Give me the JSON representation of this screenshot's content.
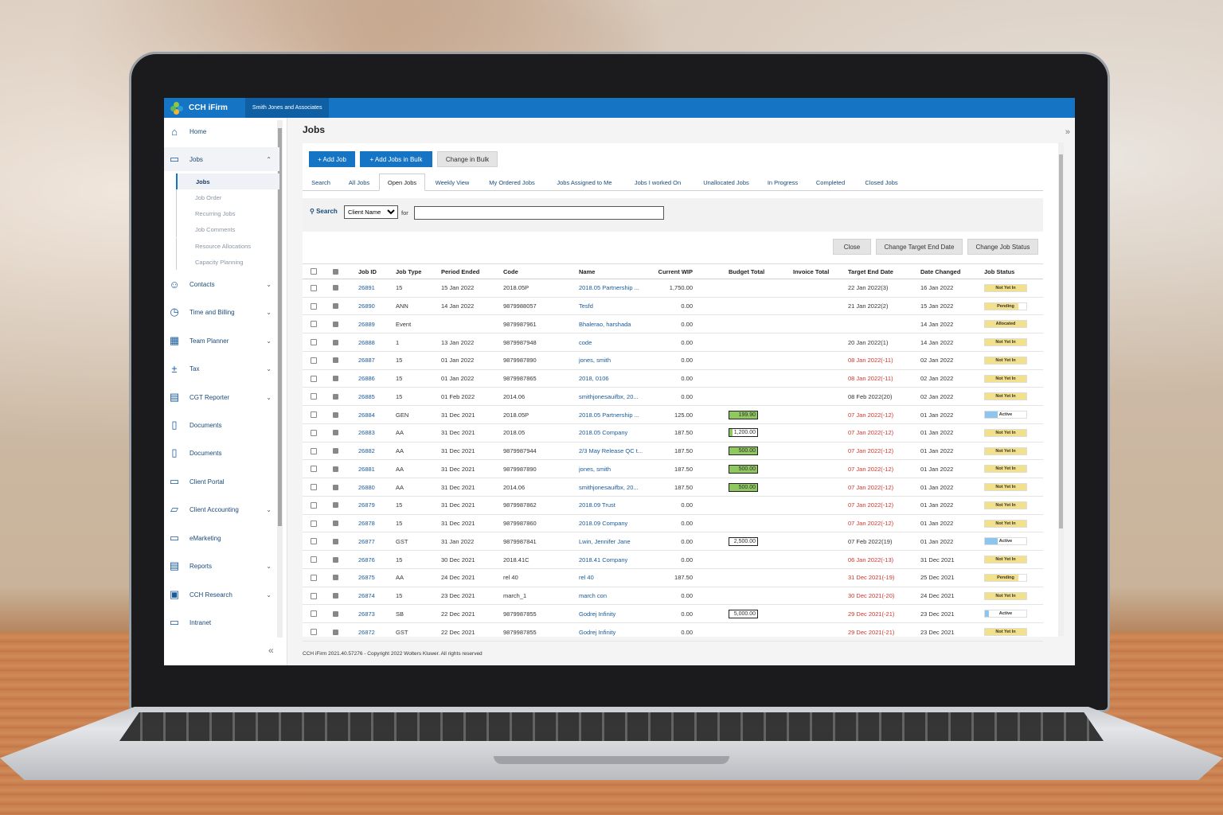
{
  "app": {
    "brand": "CCH iFirm",
    "firm": "Smith Jones and Associates"
  },
  "sidebar": {
    "items": [
      {
        "key": "home",
        "label": "Home",
        "icon": "home-icon",
        "glyph": "⌂",
        "chevron": ""
      },
      {
        "key": "jobs",
        "label": "Jobs",
        "icon": "folder-icon",
        "glyph": "▭",
        "chevron": "⌃"
      },
      {
        "key": "contacts",
        "label": "Contacts",
        "icon": "person-icon",
        "glyph": "☺",
        "chevron": "⌄"
      },
      {
        "key": "time",
        "label": "Time and Billing",
        "icon": "clock-icon",
        "glyph": "◷",
        "chevron": "⌄"
      },
      {
        "key": "planner",
        "label": "Team Planner",
        "icon": "calendar-icon",
        "glyph": "▦",
        "chevron": "⌄"
      },
      {
        "key": "tax",
        "label": "Tax",
        "icon": "calculator-icon",
        "glyph": "±",
        "chevron": "⌄"
      },
      {
        "key": "cgt",
        "label": "CGT Reporter",
        "icon": "grid-icon",
        "glyph": "▤",
        "chevron": "⌄"
      },
      {
        "key": "docs1",
        "label": "Documents",
        "icon": "document-icon",
        "glyph": "▯",
        "chevron": ""
      },
      {
        "key": "docs2",
        "label": "Documents",
        "icon": "document-icon",
        "glyph": "▯",
        "chevron": ""
      },
      {
        "key": "portal",
        "label": "Client Portal",
        "icon": "monitor-icon",
        "glyph": "▭",
        "chevron": ""
      },
      {
        "key": "accounting",
        "label": "Client Accounting",
        "icon": "inbox-icon",
        "glyph": "▱",
        "chevron": "⌄"
      },
      {
        "key": "emarketing",
        "label": "eMarketing",
        "icon": "card-icon",
        "glyph": "▭",
        "chevron": ""
      },
      {
        "key": "reports",
        "label": "Reports",
        "icon": "report-icon",
        "glyph": "▤",
        "chevron": "⌄"
      },
      {
        "key": "research",
        "label": "CCH Research",
        "icon": "briefcase-icon",
        "glyph": "▣",
        "chevron": "⌄"
      },
      {
        "key": "intranet",
        "label": "Intranet",
        "icon": "laptop-icon",
        "glyph": "▭",
        "chevron": ""
      }
    ],
    "jobs_sub": [
      "Jobs",
      "Job Order",
      "Recurring Jobs",
      "Job Comments",
      "Resource Allocations",
      "Capacity Planning"
    ]
  },
  "main": {
    "title": "Jobs",
    "buttons": {
      "add_job": "+ Add Job",
      "add_bulk": "+ Add Jobs in Bulk",
      "change_bulk": "Change in Bulk"
    },
    "tabs": [
      "Search",
      "All Jobs",
      "Open Jobs",
      "Weekly View",
      "My Ordered Jobs",
      "Jobs Assigned to Me",
      "Jobs I worked On",
      "Unallocated Jobs",
      "In Progress",
      "Completed",
      "Closed Jobs"
    ],
    "search": {
      "label": "Search",
      "select_value": "Client Name",
      "for": "for",
      "value": ""
    },
    "actions": [
      "Close",
      "Change Target End Date",
      "Change Job Status"
    ],
    "columns": [
      "Job ID",
      "Job Type",
      "Period Ended",
      "Code",
      "Name",
      "Current WIP",
      "Budget Total",
      "Invoice Total",
      "Target End Date",
      "Date Changed",
      "Job Status"
    ],
    "rows": [
      {
        "id": "26891",
        "type": "15",
        "period": "15 Jan 2022",
        "code": "2018.05P",
        "name": "2018.05 Partnership ...",
        "wip": "1,750.00",
        "budget": "",
        "budget_pct": 0,
        "invoice": "",
        "target": "22 Jan 2022(3)",
        "target_late": false,
        "changed": "16 Jan 2022",
        "status": "Not Yet In",
        "status_color": "#f3e08a",
        "status_pct": 100
      },
      {
        "id": "26890",
        "type": "ANN",
        "period": "14 Jan 2022",
        "code": "9879988057",
        "name": "Tesfd",
        "wip": "0.00",
        "budget": "",
        "budget_pct": 0,
        "invoice": "",
        "target": "21 Jan 2022(2)",
        "target_late": false,
        "changed": "15 Jan 2022",
        "status": "Pending",
        "status_color": "#f3e08a",
        "status_pct": 80
      },
      {
        "id": "26889",
        "type": "Event",
        "period": "",
        "code": "9879987961",
        "name": "Bhalerao, harshada",
        "wip": "0.00",
        "budget": "",
        "budget_pct": 0,
        "invoice": "",
        "target": "",
        "target_late": false,
        "changed": "14 Jan 2022",
        "status": "Allocated",
        "status_color": "#f3e08a",
        "status_pct": 100
      },
      {
        "id": "26888",
        "type": "1",
        "period": "13 Jan 2022",
        "code": "9879987948",
        "name": "code",
        "wip": "0.00",
        "budget": "",
        "budget_pct": 0,
        "invoice": "",
        "target": "20 Jan 2022(1)",
        "target_late": false,
        "changed": "14 Jan 2022",
        "status": "Not Yet In",
        "status_color": "#f3e08a",
        "status_pct": 100
      },
      {
        "id": "26887",
        "type": "15",
        "period": "01 Jan 2022",
        "code": "9879987890",
        "name": "jones, smith",
        "wip": "0.00",
        "budget": "",
        "budget_pct": 0,
        "invoice": "",
        "target": "08 Jan 2022(-11)",
        "target_late": true,
        "changed": "02 Jan 2022",
        "status": "Not Yet In",
        "status_color": "#f3e08a",
        "status_pct": 100
      },
      {
        "id": "26886",
        "type": "15",
        "period": "01 Jan 2022",
        "code": "9879987865",
        "name": "2018, 0106",
        "wip": "0.00",
        "budget": "",
        "budget_pct": 0,
        "invoice": "",
        "target": "08 Jan 2022(-11)",
        "target_late": true,
        "changed": "02 Jan 2022",
        "status": "Not Yet In",
        "status_color": "#f3e08a",
        "status_pct": 100
      },
      {
        "id": "26885",
        "type": "15",
        "period": "01 Feb 2022",
        "code": "2014.06",
        "name": "smithjonesauifbx, 20...",
        "wip": "0.00",
        "budget": "",
        "budget_pct": 0,
        "invoice": "",
        "target": "08 Feb 2022(20)",
        "target_late": false,
        "changed": "02 Jan 2022",
        "status": "Not Yet In",
        "status_color": "#f3e08a",
        "status_pct": 100
      },
      {
        "id": "26884",
        "type": "GEN",
        "period": "31 Dec 2021",
        "code": "2018.05P",
        "name": "2018.05 Partnership ...",
        "wip": "125.00",
        "budget": "199.90",
        "budget_pct": 100,
        "invoice": "",
        "target": "07 Jan 2022(-12)",
        "target_late": true,
        "changed": "01 Jan 2022",
        "status": "Active",
        "status_color": "#8ec5ee",
        "status_pct": 30
      },
      {
        "id": "26883",
        "type": "AA",
        "period": "31 Dec 2021",
        "code": "2018.05",
        "name": "2018.05 Company",
        "wip": "187.50",
        "budget": "1,200.00",
        "budget_pct": 10,
        "invoice": "",
        "target": "07 Jan 2022(-12)",
        "target_late": true,
        "changed": "01 Jan 2022",
        "status": "Not Yet In",
        "status_color": "#f3e08a",
        "status_pct": 100
      },
      {
        "id": "26882",
        "type": "AA",
        "period": "31 Dec 2021",
        "code": "9879987944",
        "name": "2/3 May Release QC t...",
        "wip": "187.50",
        "budget": "500.00",
        "budget_pct": 100,
        "invoice": "",
        "target": "07 Jan 2022(-12)",
        "target_late": true,
        "changed": "01 Jan 2022",
        "status": "Not Yet In",
        "status_color": "#f3e08a",
        "status_pct": 100
      },
      {
        "id": "26881",
        "type": "AA",
        "period": "31 Dec 2021",
        "code": "9879987890",
        "name": "jones, smith",
        "wip": "187.50",
        "budget": "500.00",
        "budget_pct": 100,
        "invoice": "",
        "target": "07 Jan 2022(-12)",
        "target_late": true,
        "changed": "01 Jan 2022",
        "status": "Not Yet In",
        "status_color": "#f3e08a",
        "status_pct": 100
      },
      {
        "id": "26880",
        "type": "AA",
        "period": "31 Dec 2021",
        "code": "2014.06",
        "name": "smithjonesauifbx, 20...",
        "wip": "187.50",
        "budget": "500.00",
        "budget_pct": 100,
        "invoice": "",
        "target": "07 Jan 2022(-12)",
        "target_late": true,
        "changed": "01 Jan 2022",
        "status": "Not Yet In",
        "status_color": "#f3e08a",
        "status_pct": 100
      },
      {
        "id": "26879",
        "type": "15",
        "period": "31 Dec 2021",
        "code": "9879987862",
        "name": "2018.09 Trust",
        "wip": "0.00",
        "budget": "",
        "budget_pct": 0,
        "invoice": "",
        "target": "07 Jan 2022(-12)",
        "target_late": true,
        "changed": "01 Jan 2022",
        "status": "Not Yet In",
        "status_color": "#f3e08a",
        "status_pct": 100
      },
      {
        "id": "26878",
        "type": "15",
        "period": "31 Dec 2021",
        "code": "9879987860",
        "name": "2018.09 Company",
        "wip": "0.00",
        "budget": "",
        "budget_pct": 0,
        "invoice": "",
        "target": "07 Jan 2022(-12)",
        "target_late": true,
        "changed": "01 Jan 2022",
        "status": "Not Yet In",
        "status_color": "#f3e08a",
        "status_pct": 100
      },
      {
        "id": "26877",
        "type": "GST",
        "period": "31 Jan 2022",
        "code": "9879987841",
        "name": "Lwin, Jennifer Jane",
        "wip": "0.00",
        "budget": "2,500.00",
        "budget_pct": 0,
        "invoice": "",
        "target": "07 Feb 2022(19)",
        "target_late": false,
        "changed": "01 Jan 2022",
        "status": "Active",
        "status_color": "#8ec5ee",
        "status_pct": 30
      },
      {
        "id": "26876",
        "type": "15",
        "period": "30 Dec 2021",
        "code": "2018.41C",
        "name": "2018.41 Company",
        "wip": "0.00",
        "budget": "",
        "budget_pct": 0,
        "invoice": "",
        "target": "06 Jan 2022(-13)",
        "target_late": true,
        "changed": "31 Dec 2021",
        "status": "Not Yet In",
        "status_color": "#f3e08a",
        "status_pct": 100
      },
      {
        "id": "26875",
        "type": "AA",
        "period": "24 Dec 2021",
        "code": "rel 40",
        "name": "rel 40",
        "wip": "187.50",
        "budget": "",
        "budget_pct": 0,
        "invoice": "",
        "target": "31 Dec 2021(-19)",
        "target_late": true,
        "changed": "25 Dec 2021",
        "status": "Pending",
        "status_color": "#f3e08a",
        "status_pct": 80
      },
      {
        "id": "26874",
        "type": "15",
        "period": "23 Dec 2021",
        "code": "march_1",
        "name": "march con",
        "wip": "0.00",
        "budget": "",
        "budget_pct": 0,
        "invoice": "",
        "target": "30 Dec 2021(-20)",
        "target_late": true,
        "changed": "24 Dec 2021",
        "status": "Not Yet In",
        "status_color": "#f3e08a",
        "status_pct": 100
      },
      {
        "id": "26873",
        "type": "SB",
        "period": "22 Dec 2021",
        "code": "9879987855",
        "name": "Godrej Infinity",
        "wip": "0.00",
        "budget": "5,000.00",
        "budget_pct": 0,
        "invoice": "",
        "target": "29 Dec 2021(-21)",
        "target_late": true,
        "changed": "23 Dec 2021",
        "status": "Active",
        "status_color": "#8ec5ee",
        "status_pct": 10
      },
      {
        "id": "26872",
        "type": "GST",
        "period": "22 Dec 2021",
        "code": "9879987855",
        "name": "Godrej Infinity",
        "wip": "0.00",
        "budget": "",
        "budget_pct": 0,
        "invoice": "",
        "target": "29 Dec 2021(-21)",
        "target_late": true,
        "changed": "23 Dec 2021",
        "status": "Not Yet In",
        "status_color": "#f3e08a",
        "status_pct": 100
      }
    ],
    "footer": "CCH iFirm 2021.40.57276 - Copyright 2022 Wolters Kluwer. All rights reserved"
  },
  "colors": {
    "accent": "#1574c4",
    "late": "#d0342c",
    "budget_fill": "#8fc760"
  }
}
